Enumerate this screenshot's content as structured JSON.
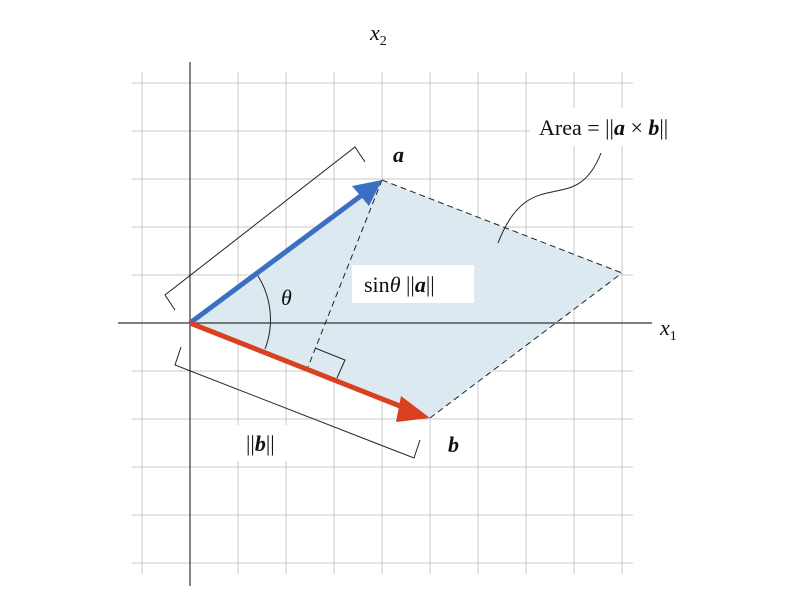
{
  "axes": {
    "x_label_base": "x",
    "x_label_sub": "1",
    "y_label_base": "x",
    "y_label_sub": "2"
  },
  "vectors": {
    "a": {
      "label": "a",
      "color": "#3a6fc4"
    },
    "b": {
      "label": "b",
      "color": "#d9401f"
    }
  },
  "annotations": {
    "area_prefix": "Area = ||",
    "area_a": "a",
    "area_times": " × ",
    "area_b": "b",
    "area_suffix": "||",
    "theta": "θ",
    "height_prefix": "sin",
    "height_theta": "θ",
    "height_norm_open": " ||",
    "height_a": "a",
    "height_norm_close": "||",
    "norm_b_open": "||",
    "norm_b": "b",
    "norm_b_close": "||"
  },
  "colors": {
    "parallelogram_fill": "#dde9f1",
    "grid": "#c8c8c8",
    "axis": "#333333"
  }
}
